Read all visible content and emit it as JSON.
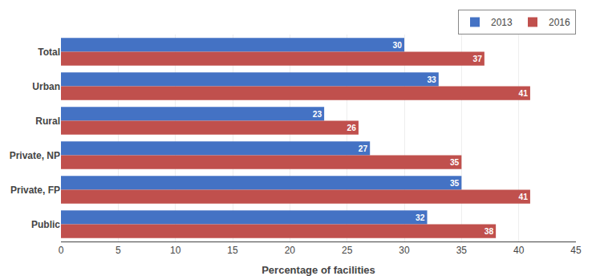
{
  "chart_data": {
    "type": "bar",
    "orientation": "horizontal",
    "categories": [
      "Total",
      "Urban",
      "Rural",
      "Private, NP",
      "Private, FP",
      "Public"
    ],
    "series": [
      {
        "name": "2013",
        "color": "#4472C4",
        "values": [
          30,
          33,
          23,
          27,
          35,
          32
        ]
      },
      {
        "name": "2016",
        "color": "#C0504D",
        "values": [
          37,
          41,
          26,
          35,
          41,
          38
        ]
      }
    ],
    "xlabel": "Percentage of facilities",
    "xlim": [
      0,
      45
    ],
    "xticks": [
      0,
      5,
      10,
      15,
      20,
      25,
      30,
      35,
      40,
      45
    ],
    "grid": true,
    "legend": "upper right",
    "data_labels": true
  }
}
